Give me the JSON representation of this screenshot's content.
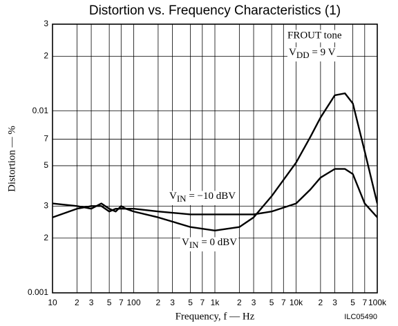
{
  "chart_data": {
    "type": "line",
    "title": "Distortion vs. Frequency Characteristics (1)",
    "x_label": "Frequency, f — Hz",
    "y_label": "Distortion — %",
    "figure_code": "ILC05490",
    "log_x": true,
    "log_y": true,
    "grid": true,
    "annotations": [
      {
        "text": "FROUT tone"
      },
      {
        "main": "V",
        "sub": "DD",
        "rest": " = 9 V"
      }
    ],
    "xlim": [
      10,
      100000
    ],
    "ylim": [
      0.001,
      0.03
    ],
    "xticks": [
      10,
      {
        "value": 20,
        "label": "2"
      },
      {
        "value": 30,
        "label": "3"
      },
      {
        "value": 50,
        "label": "5"
      },
      {
        "value": 70,
        "label": "7"
      },
      100,
      {
        "value": 200,
        "label": "2"
      },
      {
        "value": 300,
        "label": "3"
      },
      {
        "value": 500,
        "label": "5"
      },
      {
        "value": 700,
        "label": "7"
      },
      {
        "value": 1000,
        "label": "1k"
      },
      {
        "value": 2000,
        "label": "2"
      },
      {
        "value": 3000,
        "label": "3"
      },
      {
        "value": 5000,
        "label": "5"
      },
      {
        "value": 7000,
        "label": "7"
      },
      {
        "value": 10000,
        "label": "10k"
      },
      {
        "value": 20000,
        "label": "2"
      },
      {
        "value": 30000,
        "label": "3"
      },
      {
        "value": 50000,
        "label": "5"
      },
      {
        "value": 70000,
        "label": "7"
      },
      {
        "value": 100000,
        "label": "100k"
      }
    ],
    "yticks": [
      0.001,
      {
        "value": 0.002,
        "label": "2"
      },
      {
        "value": 0.003,
        "label": "3"
      },
      {
        "value": 0.005,
        "label": "5"
      },
      {
        "value": 0.007,
        "label": "7"
      },
      0.01,
      {
        "value": 0.02,
        "label": "2"
      },
      {
        "value": 0.03,
        "label": "3"
      }
    ],
    "x": [
      10,
      20,
      30,
      40,
      50,
      60,
      70,
      80,
      100,
      200,
      500,
      1000,
      2000,
      3000,
      5000,
      10000,
      15000,
      20000,
      30000,
      40000,
      50000,
      70000,
      100000
    ],
    "series": [
      {
        "label": {
          "main": "V",
          "sub": "IN",
          "rest": " = 0 dBV"
        },
        "color": "#000000",
        "values": [
          0.0031,
          0.003,
          0.0029,
          0.0031,
          0.0029,
          0.0028,
          0.003,
          0.0029,
          0.0028,
          0.0026,
          0.0023,
          0.0022,
          0.0023,
          0.0026,
          0.0034,
          0.0052,
          0.0072,
          0.0092,
          0.0122,
          0.0125,
          0.011,
          0.006,
          0.0031
        ]
      },
      {
        "label": {
          "main": "V",
          "sub": "IN",
          "rest": " = −10 dBV"
        },
        "color": "#000000",
        "values": [
          0.0026,
          0.0029,
          0.003,
          0.003,
          0.0028,
          0.0029,
          0.0029,
          0.0029,
          0.0029,
          0.0028,
          0.0027,
          0.0027,
          0.0027,
          0.0027,
          0.0028,
          0.0031,
          0.0037,
          0.0043,
          0.0048,
          0.0048,
          0.0045,
          0.0031,
          0.0026
        ]
      }
    ]
  }
}
